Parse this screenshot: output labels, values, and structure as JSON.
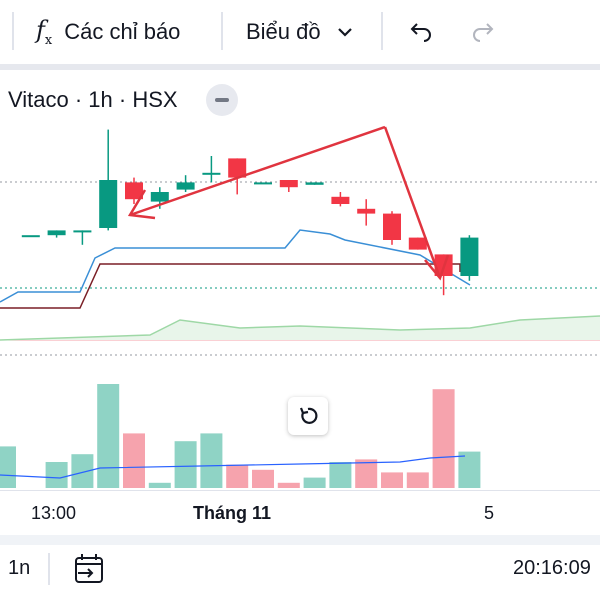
{
  "toolbar": {
    "indicators_label": "Các chỉ báo",
    "indicators_icon": "function-fx-icon",
    "chart_type_label": "Biểu đồ",
    "chart_type_icon": "chevron-down-icon",
    "undo_icon": "undo-icon",
    "redo_icon": "redo-icon"
  },
  "legend": {
    "symbol": "Vitaco · 1h · HSX",
    "collapse_icon": "minus-icon"
  },
  "reset_icon": "reset-rotate-icon",
  "x_axis": {
    "labels": [
      "13:00",
      "Tháng 11",
      "5"
    ]
  },
  "bottom_bar": {
    "interval": "1n",
    "goto_date_icon": "calendar-goto-icon",
    "clock": "20:16:09"
  },
  "colors": {
    "up": "#089981",
    "down": "#f23645",
    "vol_up": "#8fd3c5",
    "vol_down": "#f6a3ad",
    "arrow": "#e0343f"
  },
  "chart_data": {
    "type": "candlestick",
    "candles": [
      {
        "o": 0.0,
        "h": 0.0,
        "l": 0.0,
        "c": 0.0,
        "dir": "up"
      },
      {
        "o": 22,
        "h": 22,
        "l": 22,
        "c": 22,
        "dir": "up"
      },
      {
        "o": 22,
        "h": 24,
        "l": 21,
        "c": 24,
        "dir": "up"
      },
      {
        "o": 24,
        "h": 24,
        "l": 18,
        "c": 24,
        "dir": "up"
      },
      {
        "o": 25,
        "h": 66,
        "l": 24,
        "c": 45,
        "dir": "up"
      },
      {
        "o": 44,
        "h": 46,
        "l": 35,
        "c": 37,
        "dir": "down"
      },
      {
        "o": 36,
        "h": 42,
        "l": 33,
        "c": 40,
        "dir": "up"
      },
      {
        "o": 41,
        "h": 47,
        "l": 40,
        "c": 44,
        "dir": "up"
      },
      {
        "o": 48,
        "h": 55,
        "l": 44,
        "c": 48,
        "dir": "up"
      },
      {
        "o": 54,
        "h": 54,
        "l": 39,
        "c": 46,
        "dir": "down"
      },
      {
        "o": 44,
        "h": 44,
        "l": 44,
        "c": 44,
        "dir": "up"
      },
      {
        "o": 45,
        "h": 45,
        "l": 40,
        "c": 42,
        "dir": "down"
      },
      {
        "o": 43,
        "h": 44,
        "l": 43,
        "c": 44,
        "dir": "up"
      },
      {
        "o": 38,
        "h": 40,
        "l": 34,
        "c": 35,
        "dir": "down"
      },
      {
        "o": 33,
        "h": 37,
        "l": 26,
        "c": 31,
        "dir": "down"
      },
      {
        "o": 31,
        "h": 32,
        "l": 18,
        "c": 20,
        "dir": "down"
      },
      {
        "o": 21,
        "h": 21,
        "l": 16,
        "c": 16,
        "dir": "down"
      },
      {
        "o": 14,
        "h": 14,
        "l": -3,
        "c": 5,
        "dir": "down"
      },
      {
        "o": 5,
        "h": 22,
        "l": 3,
        "c": 21,
        "dir": "up"
      }
    ],
    "volume": [
      {
        "v": 16,
        "dir": "up"
      },
      {
        "v": 0,
        "dir": "up"
      },
      {
        "v": 10,
        "dir": "up"
      },
      {
        "v": 13,
        "dir": "up"
      },
      {
        "v": 40,
        "dir": "up"
      },
      {
        "v": 21,
        "dir": "down"
      },
      {
        "v": 2,
        "dir": "up"
      },
      {
        "v": 18,
        "dir": "up"
      },
      {
        "v": 21,
        "dir": "up"
      },
      {
        "v": 9,
        "dir": "down"
      },
      {
        "v": 7,
        "dir": "down"
      },
      {
        "v": 2,
        "dir": "down"
      },
      {
        "v": 4,
        "dir": "up"
      },
      {
        "v": 10,
        "dir": "up"
      },
      {
        "v": 11,
        "dir": "down"
      },
      {
        "v": 6,
        "dir": "down"
      },
      {
        "v": 6,
        "dir": "down"
      },
      {
        "v": 38,
        "dir": "down"
      },
      {
        "v": 14,
        "dir": "up"
      }
    ]
  }
}
